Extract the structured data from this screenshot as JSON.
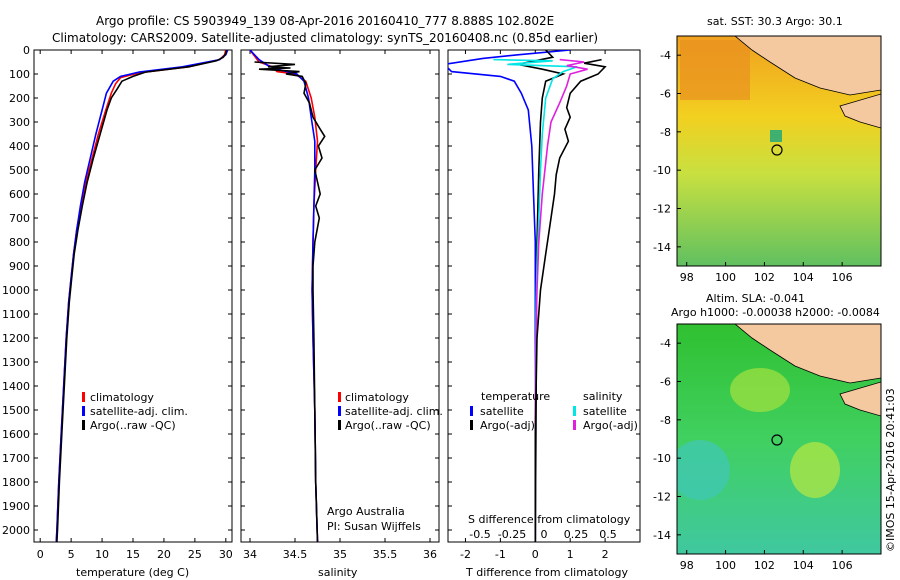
{
  "header": {
    "line1": "Argo profile: CS 5903949_139 08-Apr-2016 20160410_777 8.888S 102.802E",
    "line2": "Climatology: CARS2009. Satellite-adjusted climatology: synTS_20160408.nc (0.85d earlier)"
  },
  "colors": {
    "climatology": "#ff0000",
    "satellite": "#0000ff",
    "argo": "#000000",
    "sat_salinity": "#00e5e5",
    "argo_adj_salinity": "#e020e0",
    "land": "#f5c9a0"
  },
  "chart_data": [
    {
      "type": "line",
      "xlabel": "temperature (deg C)",
      "ylim": [
        2050,
        0
      ],
      "xlim": [
        -1,
        31
      ],
      "xticks": [
        "0",
        "5",
        "10",
        "15",
        "20",
        "25",
        "30"
      ],
      "yticks": [
        "0",
        "100",
        "200",
        "300",
        "400",
        "500",
        "600",
        "700",
        "800",
        "900",
        "1000",
        "1100",
        "1200",
        "1300",
        "1400",
        "1500",
        "1600",
        "1700",
        "1800",
        "1900",
        "2000"
      ],
      "legend": [
        "climatology",
        "satellite-adj. clim.",
        "Argo(..raw -QC)"
      ],
      "series": [
        {
          "name": "climatology",
          "color": "#ff0000",
          "points": [
            [
              30,
              0
            ],
            [
              29.8,
              20
            ],
            [
              29,
              40
            ],
            [
              24,
              70
            ],
            [
              16,
              95
            ],
            [
              13,
              115
            ],
            [
              12.2,
              140
            ],
            [
              11.5,
              180
            ],
            [
              10.6,
              250
            ],
            [
              9.4,
              350
            ],
            [
              8.4,
              450
            ],
            [
              7.4,
              550
            ],
            [
              6.6,
              650
            ],
            [
              5.9,
              750
            ],
            [
              5.4,
              850
            ],
            [
              5,
              950
            ],
            [
              4.6,
              1050
            ],
            [
              4.2,
              1200
            ],
            [
              3.8,
              1400
            ],
            [
              3.4,
              1600
            ],
            [
              3,
              1800
            ],
            [
              2.7,
              2000
            ],
            [
              2.6,
              2050
            ]
          ]
        },
        {
          "name": "satellite-adj. clim.",
          "color": "#0000ff",
          "points": [
            [
              30.3,
              0
            ],
            [
              30,
              20
            ],
            [
              29,
              40
            ],
            [
              23,
              70
            ],
            [
              16,
              92
            ],
            [
              13,
              110
            ],
            [
              11.8,
              130
            ],
            [
              10.7,
              180
            ],
            [
              10,
              250
            ],
            [
              9,
              350
            ],
            [
              8.1,
              450
            ],
            [
              7.2,
              550
            ],
            [
              6.5,
              650
            ],
            [
              5.9,
              750
            ],
            [
              5.4,
              850
            ],
            [
              5,
              950
            ],
            [
              4.6,
              1050
            ],
            [
              4.2,
              1200
            ],
            [
              3.8,
              1400
            ],
            [
              3.4,
              1600
            ],
            [
              3,
              1800
            ],
            [
              2.7,
              2000
            ],
            [
              2.6,
              2050
            ]
          ]
        },
        {
          "name": "Argo(..raw -QC)",
          "color": "#000000",
          "points": [
            [
              30.1,
              0
            ],
            [
              30,
              15
            ],
            [
              29.6,
              30
            ],
            [
              28.5,
              45
            ],
            [
              24,
              70
            ],
            [
              17,
              92
            ],
            [
              15,
              110
            ],
            [
              13.2,
              130
            ],
            [
              12.5,
              160
            ],
            [
              11.5,
              200
            ],
            [
              10.8,
              250
            ],
            [
              9.7,
              350
            ],
            [
              8.6,
              450
            ],
            [
              7.6,
              550
            ],
            [
              6.8,
              650
            ],
            [
              6.1,
              750
            ],
            [
              5.5,
              850
            ],
            [
              5.1,
              950
            ],
            [
              4.7,
              1050
            ],
            [
              4.3,
              1200
            ],
            [
              3.9,
              1400
            ],
            [
              3.5,
              1600
            ],
            [
              3.1,
              1800
            ],
            [
              2.8,
              2000
            ],
            [
              2.7,
              2050
            ]
          ]
        }
      ]
    },
    {
      "type": "line",
      "xlabel": "salinity",
      "ylim": [
        2050,
        0
      ],
      "xlim": [
        33.9,
        36.1
      ],
      "xticks": [
        "34",
        "34.5",
        "35",
        "35.5",
        "36"
      ],
      "legend": [
        "climatology",
        "satellite-adj. clim.",
        "Argo(..raw -QC)"
      ],
      "annotation": [
        "Argo Australia",
        "PI: Susan Wijffels"
      ],
      "series": [
        {
          "name": "climatology",
          "color": "#ff0000",
          "points": [
            [
              34.0,
              0
            ],
            [
              34.1,
              50
            ],
            [
              34.25,
              70
            ],
            [
              34.3,
              90
            ],
            [
              34.5,
              100
            ],
            [
              34.62,
              130
            ],
            [
              34.68,
              200
            ],
            [
              34.72,
              280
            ],
            [
              34.75,
              380
            ],
            [
              34.73,
              500
            ],
            [
              34.71,
              650
            ],
            [
              34.7,
              800
            ],
            [
              34.69,
              1000
            ],
            [
              34.7,
              1200
            ],
            [
              34.72,
              1500
            ],
            [
              34.73,
              1800
            ],
            [
              34.75,
              2050
            ]
          ]
        },
        {
          "name": "satellite-adj. clim.",
          "color": "#0000ff",
          "points": [
            [
              34.0,
              0
            ],
            [
              34.1,
              40
            ],
            [
              34.2,
              65
            ],
            [
              34.35,
              85
            ],
            [
              34.52,
              100
            ],
            [
              34.6,
              130
            ],
            [
              34.65,
              200
            ],
            [
              34.68,
              280
            ],
            [
              34.72,
              380
            ],
            [
              34.72,
              500
            ],
            [
              34.71,
              650
            ],
            [
              34.7,
              800
            ],
            [
              34.69,
              1000
            ],
            [
              34.7,
              1200
            ],
            [
              34.72,
              1500
            ],
            [
              34.73,
              1800
            ],
            [
              34.75,
              2050
            ]
          ]
        },
        {
          "name": "Argo(..raw -QC)",
          "color": "#000000",
          "points": [
            [
              34.05,
              50
            ],
            [
              34.5,
              60
            ],
            [
              34.2,
              70
            ],
            [
              34.45,
              75
            ],
            [
              34.1,
              80
            ],
            [
              34.55,
              90
            ],
            [
              34.4,
              100
            ],
            [
              34.58,
              110
            ],
            [
              34.62,
              140
            ],
            [
              34.6,
              180
            ],
            [
              34.66,
              220
            ],
            [
              34.7,
              280
            ],
            [
              34.78,
              330
            ],
            [
              34.83,
              360
            ],
            [
              34.76,
              400
            ],
            [
              34.8,
              450
            ],
            [
              34.72,
              500
            ],
            [
              34.78,
              600
            ],
            [
              34.73,
              650
            ],
            [
              34.77,
              700
            ],
            [
              34.72,
              800
            ],
            [
              34.7,
              900
            ],
            [
              34.7,
              1000
            ],
            [
              34.71,
              1200
            ],
            [
              34.72,
              1500
            ],
            [
              34.73,
              1800
            ],
            [
              34.75,
              2050
            ]
          ]
        }
      ]
    },
    {
      "type": "line",
      "xlabel": "T difference from climatology",
      "xlabel_top": "S difference from climatology",
      "ylim": [
        2050,
        0
      ],
      "xlim": [
        -2.5,
        3
      ],
      "xticks": [
        "-2",
        "-1",
        "0",
        "1",
        "2"
      ],
      "xticks_top": [
        "-0.5",
        "-0.25",
        "0",
        "0.25",
        "0.5"
      ],
      "legend_left_title": "temperature",
      "legend_right_title": "salinity",
      "legend": [
        "satellite",
        "Argo(-adj)",
        "satellite",
        "Argo(-adj)"
      ],
      "series": [
        {
          "name": "temperature satellite",
          "color": "#0000ff",
          "points": [
            [
              1,
              0
            ],
            [
              -0.5,
              20
            ],
            [
              -1.5,
              35
            ],
            [
              -2.6,
              60
            ],
            [
              -2.4,
              90
            ],
            [
              -1,
              110
            ],
            [
              -0.6,
              130
            ],
            [
              -0.4,
              180
            ],
            [
              -0.2,
              250
            ],
            [
              -0.1,
              400
            ],
            [
              -0.05,
              600
            ],
            [
              0,
              800
            ],
            [
              0,
              1200
            ],
            [
              0,
              1600
            ],
            [
              0,
              2050
            ]
          ]
        },
        {
          "name": "temperature Argo(-adj)",
          "color": "#000000",
          "points": [
            [
              0.3,
              0
            ],
            [
              0.5,
              30
            ],
            [
              -0.5,
              60
            ],
            [
              0.2,
              80
            ],
            [
              0.8,
              100
            ],
            [
              0.3,
              130
            ],
            [
              0.2,
              200
            ],
            [
              0.15,
              300
            ],
            [
              0.1,
              500
            ],
            [
              0.05,
              800
            ],
            [
              0.03,
              1200
            ],
            [
              0.02,
              1600
            ],
            [
              0,
              2050
            ]
          ]
        },
        {
          "name": "salinity satellite",
          "color": "#00e5e5",
          "points": [
            [
              -1.2,
              40
            ],
            [
              0.5,
              45
            ],
            [
              -0.8,
              60
            ],
            [
              1.2,
              70
            ],
            [
              0.8,
              90
            ],
            [
              0.5,
              120
            ],
            [
              0.3,
              200
            ],
            [
              0.2,
              350
            ],
            [
              0.15,
              500
            ],
            [
              0.1,
              700
            ],
            [
              0.05,
              900
            ],
            [
              0.02,
              1100
            ],
            [
              0,
              1400
            ],
            [
              0,
              2050
            ]
          ]
        },
        {
          "name": "salinity Argo(-adj)",
          "color": "#e020e0",
          "points": [
            [
              0.7,
              40
            ],
            [
              1.4,
              50
            ],
            [
              0.9,
              65
            ],
            [
              1.5,
              80
            ],
            [
              1.0,
              100
            ],
            [
              0.9,
              150
            ],
            [
              0.7,
              220
            ],
            [
              0.45,
              300
            ],
            [
              0.35,
              400
            ],
            [
              0.2,
              600
            ],
            [
              0.1,
              800
            ],
            [
              0.05,
              1000
            ],
            [
              0.02,
              1200
            ],
            [
              0,
              1500
            ],
            [
              0,
              2050
            ]
          ]
        },
        {
          "name": "salinity Argo raw",
          "color": "#000000",
          "points": [
            [
              1.9,
              40
            ],
            [
              1.4,
              55
            ],
            [
              2.0,
              70
            ],
            [
              1.8,
              100
            ],
            [
              1.3,
              130
            ],
            [
              1.0,
              180
            ],
            [
              0.9,
              240
            ],
            [
              1.0,
              280
            ],
            [
              0.85,
              330
            ],
            [
              0.95,
              380
            ],
            [
              0.7,
              450
            ],
            [
              0.6,
              520
            ],
            [
              0.55,
              600
            ],
            [
              0.45,
              700
            ],
            [
              0.3,
              850
            ],
            [
              0.15,
              1000
            ],
            [
              0.05,
              1200
            ],
            [
              0,
              1600
            ],
            [
              0,
              2050
            ]
          ]
        }
      ]
    },
    {
      "type": "heatmap",
      "title": "sat. SST: 30.3 Argo: 30.1",
      "xticks": [
        "98",
        "100",
        "102",
        "104",
        "106"
      ],
      "yticks": [
        "-4",
        "-6",
        "-8",
        "-10",
        "-12",
        "-14"
      ],
      "xlim": [
        97.5,
        108
      ],
      "ylim": [
        -15,
        -3
      ],
      "marker": [
        102.8,
        -8.9
      ]
    },
    {
      "type": "heatmap",
      "title": "Altim. SLA: -0.041",
      "subtitle": "Argo h1000: -0.00038 h2000: -0.0084",
      "xticks": [
        "98",
        "100",
        "102",
        "104",
        "106"
      ],
      "yticks": [
        "-4",
        "-6",
        "-8",
        "-10",
        "-12",
        "-14"
      ],
      "xlim": [
        97.5,
        108
      ],
      "ylim": [
        -15,
        -3
      ],
      "marker": [
        102.8,
        -8.9
      ]
    }
  ],
  "stamp": "©IMOS 15-Apr-2016 20:41:03"
}
